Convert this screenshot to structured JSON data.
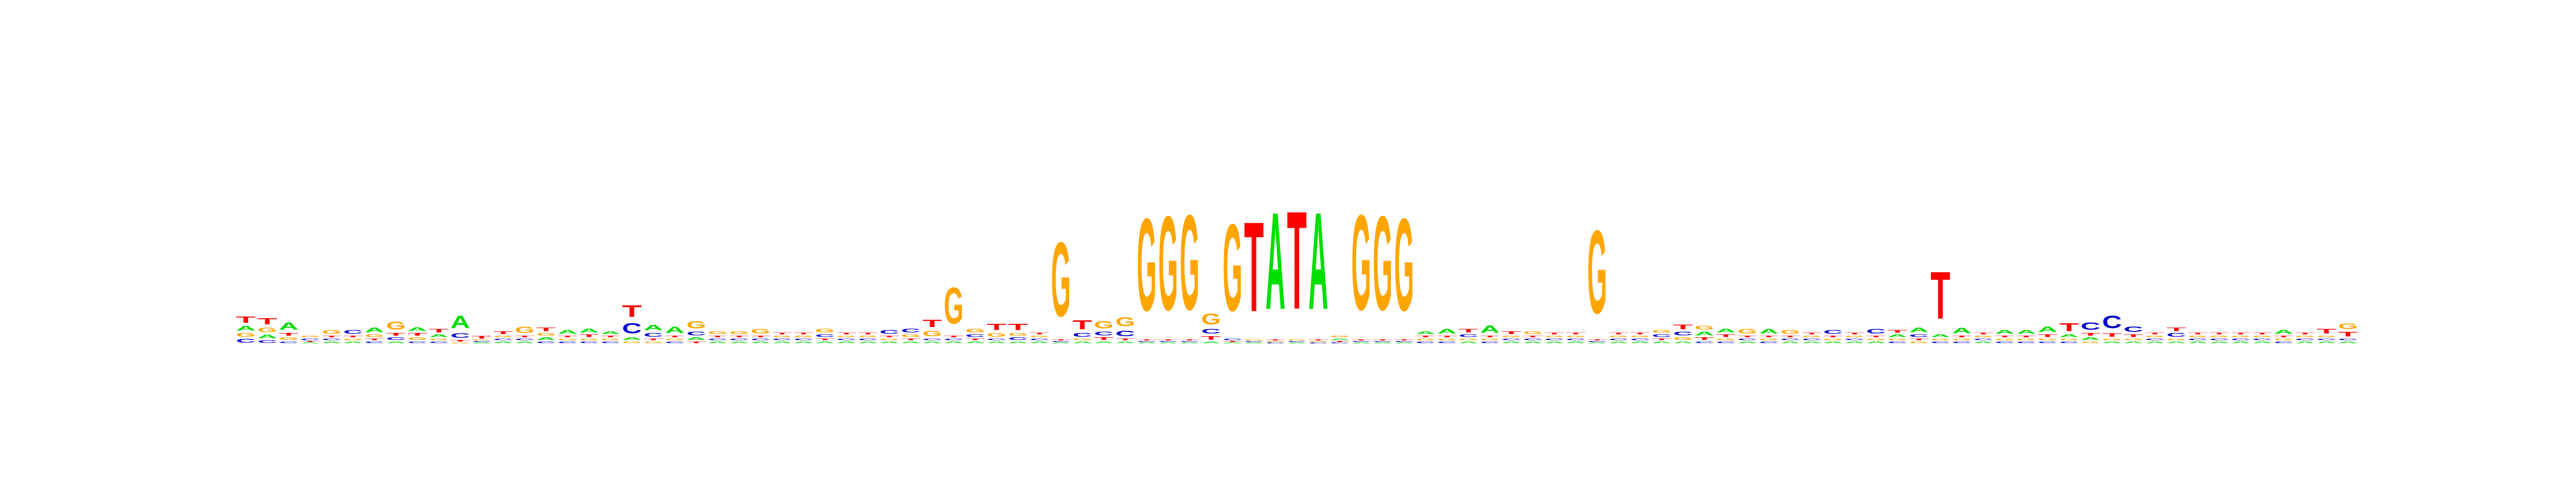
{
  "chart_data": {
    "type": "sequence-logo",
    "title": "",
    "xlabel": "",
    "ylabel": "",
    "axes_visible": false,
    "grid": false,
    "ylim": [
      0,
      2
    ],
    "alphabet": [
      "A",
      "C",
      "G",
      "T"
    ],
    "colors": {
      "A": "#00dd00",
      "C": "#0000cc",
      "G": "#ffa500",
      "T": "#ff0000"
    },
    "positions": [
      {
        "A": 0.05,
        "C": 0.04,
        "G": 0.04,
        "T": 0.07
      },
      {
        "A": 0.04,
        "C": 0.03,
        "G": 0.05,
        "T": 0.07
      },
      {
        "A": 0.08,
        "C": 0.02,
        "G": 0.03,
        "T": 0.03
      },
      {
        "A": 0.01,
        "C": 0.02,
        "G": 0.02,
        "T": 0.01
      },
      {
        "A": 0.02,
        "C": 0.02,
        "G": 0.04,
        "T": 0.02
      },
      {
        "A": 0.02,
        "C": 0.04,
        "G": 0.02,
        "T": 0.02
      },
      {
        "A": 0.05,
        "C": 0.02,
        "G": 0.03,
        "T": 0.02
      },
      {
        "A": 0.02,
        "C": 0.03,
        "G": 0.09,
        "T": 0.03
      },
      {
        "A": 0.04,
        "C": 0.02,
        "G": 0.03,
        "T": 0.03
      },
      {
        "A": 0.03,
        "C": 0.02,
        "G": 0.02,
        "T": 0.04
      },
      {
        "A": 0.14,
        "C": 0.05,
        "G": 0.01,
        "T": 0.02
      },
      {
        "A": 0.01,
        "C": 0.01,
        "G": 0.01,
        "T": 0.03
      },
      {
        "A": 0.02,
        "C": 0.02,
        "G": 0.02,
        "T": 0.03
      },
      {
        "A": 0.02,
        "C": 0.02,
        "G": 0.07,
        "T": 0.02
      },
      {
        "A": 0.03,
        "C": 0.02,
        "G": 0.03,
        "T": 0.04
      },
      {
        "A": 0.04,
        "C": 0.02,
        "G": 0.02,
        "T": 0.02
      },
      {
        "A": 0.04,
        "C": 0.02,
        "G": 0.02,
        "T": 0.03
      },
      {
        "A": 0.03,
        "C": 0.02,
        "G": 0.02,
        "T": 0.02
      },
      {
        "A": 0.03,
        "C": 0.11,
        "G": 0.02,
        "T": 0.13
      },
      {
        "A": 0.06,
        "C": 0.04,
        "G": 0.02,
        "T": 0.02
      },
      {
        "A": 0.07,
        "C": 0.02,
        "G": 0.02,
        "T": 0.02
      },
      {
        "A": 0.03,
        "C": 0.04,
        "G": 0.08,
        "T": 0.02
      },
      {
        "A": 0.02,
        "C": 0.02,
        "G": 0.03,
        "T": 0.02
      },
      {
        "A": 0.02,
        "C": 0.02,
        "G": 0.03,
        "T": 0.02
      },
      {
        "A": 0.02,
        "C": 0.02,
        "G": 0.05,
        "T": 0.02
      },
      {
        "A": 0.02,
        "C": 0.02,
        "G": 0.02,
        "T": 0.02
      },
      {
        "A": 0.02,
        "C": 0.02,
        "G": 0.02,
        "T": 0.02
      },
      {
        "A": 0.02,
        "C": 0.03,
        "G": 0.04,
        "T": 0.02
      },
      {
        "A": 0.02,
        "C": 0.02,
        "G": 0.02,
        "T": 0.02
      },
      {
        "A": 0.02,
        "C": 0.02,
        "G": 0.02,
        "T": 0.02
      },
      {
        "A": 0.02,
        "C": 0.04,
        "G": 0.02,
        "T": 0.02
      },
      {
        "A": 0.02,
        "C": 0.04,
        "G": 0.03,
        "T": 0.02
      },
      {
        "A": 0.02,
        "C": 0.02,
        "G": 0.06,
        "T": 0.08
      },
      {
        "A": 0.02,
        "C": 0.02,
        "G": 0.4,
        "T": 0.02
      },
      {
        "A": 0.02,
        "C": 0.03,
        "G": 0.04,
        "T": 0.02
      },
      {
        "A": 0.02,
        "C": 0.02,
        "G": 0.04,
        "T": 0.07
      },
      {
        "A": 0.02,
        "C": 0.03,
        "G": 0.03,
        "T": 0.07
      },
      {
        "A": 0.02,
        "C": 0.02,
        "G": 0.02,
        "T": 0.02
      },
      {
        "A": 0.01,
        "C": 0.01,
        "G": 0.82,
        "T": 0.01
      },
      {
        "A": 0.02,
        "C": 0.04,
        "G": 0.02,
        "T": 0.1
      },
      {
        "A": 0.02,
        "C": 0.04,
        "G": 0.08,
        "T": 0.03
      },
      {
        "A": 0.02,
        "C": 0.06,
        "G": 0.1,
        "T": 0.02
      },
      {
        "A": 0.01,
        "C": 0.01,
        "G": 1.02,
        "T": 0.01
      },
      {
        "A": 0.01,
        "C": 0.01,
        "G": 1.04,
        "T": 0.01
      },
      {
        "A": 0.01,
        "C": 0.01,
        "G": 1.05,
        "T": 0.01
      },
      {
        "A": 0.02,
        "C": 0.05,
        "G": 0.12,
        "T": 0.04
      },
      {
        "A": 0.01,
        "C": 0.02,
        "G": 0.96,
        "T": 0.01
      },
      {
        "A": 0.01,
        "C": 0.01,
        "G": 0.01,
        "T": 0.99
      },
      {
        "A": 1.07,
        "C": 0.01,
        "G": 0.01,
        "T": 0.01
      },
      {
        "A": 0.01,
        "C": 0.01,
        "G": 0.01,
        "T": 1.08
      },
      {
        "A": 1.07,
        "C": 0.01,
        "G": 0.01,
        "T": 0.01
      },
      {
        "A": 0.02,
        "C": 0.01,
        "G": 0.02,
        "T": 0.01
      },
      {
        "A": 0.01,
        "C": 0.01,
        "G": 1.05,
        "T": 0.01
      },
      {
        "A": 0.01,
        "C": 0.01,
        "G": 1.04,
        "T": 0.01
      },
      {
        "A": 0.01,
        "C": 0.01,
        "G": 1.02,
        "T": 0.01
      },
      {
        "A": 0.03,
        "C": 0.02,
        "G": 0.02,
        "T": 0.02
      },
      {
        "A": 0.05,
        "C": 0.02,
        "G": 0.02,
        "T": 0.02
      },
      {
        "A": 0.02,
        "C": 0.03,
        "G": 0.02,
        "T": 0.04
      },
      {
        "A": 0.08,
        "C": 0.02,
        "G": 0.02,
        "T": 0.02
      },
      {
        "A": 0.02,
        "C": 0.02,
        "G": 0.02,
        "T": 0.03
      },
      {
        "A": 0.02,
        "C": 0.02,
        "G": 0.03,
        "T": 0.02
      },
      {
        "A": 0.02,
        "C": 0.02,
        "G": 0.02,
        "T": 0.02
      },
      {
        "A": 0.02,
        "C": 0.02,
        "G": 0.02,
        "T": 0.02
      },
      {
        "A": 0.01,
        "C": 0.01,
        "G": 0.92,
        "T": 0.01
      },
      {
        "A": 0.02,
        "C": 0.02,
        "G": 0.02,
        "T": 0.02
      },
      {
        "A": 0.02,
        "C": 0.02,
        "G": 0.02,
        "T": 0.02
      },
      {
        "A": 0.02,
        "C": 0.03,
        "G": 0.03,
        "T": 0.02
      },
      {
        "A": 0.02,
        "C": 0.04,
        "G": 0.03,
        "T": 0.05
      },
      {
        "A": 0.04,
        "C": 0.02,
        "G": 0.04,
        "T": 0.03
      },
      {
        "A": 0.04,
        "C": 0.02,
        "G": 0.02,
        "T": 0.03
      },
      {
        "A": 0.02,
        "C": 0.02,
        "G": 0.05,
        "T": 0.02
      },
      {
        "A": 0.05,
        "C": 0.02,
        "G": 0.02,
        "T": 0.02
      },
      {
        "A": 0.02,
        "C": 0.02,
        "G": 0.04,
        "T": 0.02
      },
      {
        "A": 0.02,
        "C": 0.02,
        "G": 0.02,
        "T": 0.02
      },
      {
        "A": 0.02,
        "C": 0.04,
        "G": 0.02,
        "T": 0.02
      },
      {
        "A": 0.02,
        "C": 0.02,
        "G": 0.02,
        "T": 0.02
      },
      {
        "A": 0.02,
        "C": 0.05,
        "G": 0.02,
        "T": 0.02
      },
      {
        "A": 0.03,
        "C": 0.02,
        "G": 0.02,
        "T": 0.03
      },
      {
        "A": 0.05,
        "C": 0.03,
        "G": 0.02,
        "T": 0.02
      },
      {
        "A": 0.03,
        "C": 0.02,
        "G": 0.02,
        "T": 0.52
      },
      {
        "A": 0.06,
        "C": 0.02,
        "G": 0.02,
        "T": 0.02
      },
      {
        "A": 0.02,
        "C": 0.02,
        "G": 0.02,
        "T": 0.02
      },
      {
        "A": 0.04,
        "C": 0.02,
        "G": 0.02,
        "T": 0.02
      },
      {
        "A": 0.04,
        "C": 0.02,
        "G": 0.02,
        "T": 0.02
      },
      {
        "A": 0.06,
        "C": 0.02,
        "G": 0.02,
        "T": 0.03
      },
      {
        "A": 0.03,
        "C": 0.02,
        "G": 0.02,
        "T": 0.09
      },
      {
        "A": 0.03,
        "C": 0.08,
        "G": 0.02,
        "T": 0.03
      },
      {
        "A": 0.02,
        "C": 0.14,
        "G": 0.02,
        "T": 0.04
      },
      {
        "A": 0.02,
        "C": 0.06,
        "G": 0.02,
        "T": 0.03
      },
      {
        "A": 0.02,
        "C": 0.02,
        "G": 0.02,
        "T": 0.02
      },
      {
        "A": 0.02,
        "C": 0.04,
        "G": 0.02,
        "T": 0.04
      },
      {
        "A": 0.02,
        "C": 0.02,
        "G": 0.02,
        "T": 0.02
      },
      {
        "A": 0.02,
        "C": 0.02,
        "G": 0.02,
        "T": 0.02
      },
      {
        "A": 0.02,
        "C": 0.02,
        "G": 0.02,
        "T": 0.02
      },
      {
        "A": 0.02,
        "C": 0.02,
        "G": 0.02,
        "T": 0.02
      },
      {
        "A": 0.04,
        "C": 0.02,
        "G": 0.02,
        "T": 0.02
      },
      {
        "A": 0.02,
        "C": 0.02,
        "G": 0.02,
        "T": 0.02
      },
      {
        "A": 0.02,
        "C": 0.02,
        "G": 0.02,
        "T": 0.05
      },
      {
        "A": 0.02,
        "C": 0.02,
        "G": 0.06,
        "T": 0.05
      }
    ]
  }
}
